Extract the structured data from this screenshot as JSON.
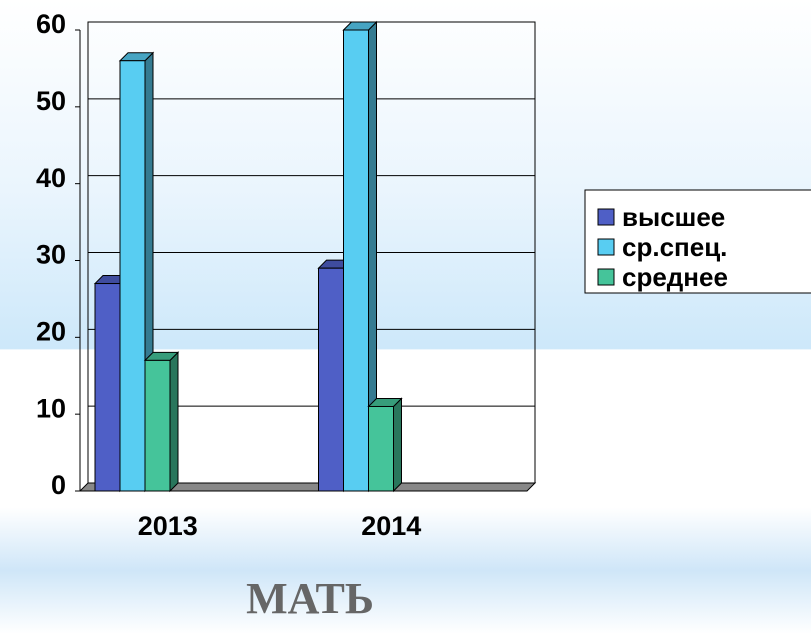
{
  "chart_data": {
    "type": "bar3d",
    "title": "МАТЬ",
    "categories": [
      "2013",
      "2014"
    ],
    "series": [
      {
        "name": "высшее",
        "color": "#4f5fc6",
        "values": [
          27,
          29
        ]
      },
      {
        "name": "ср.спец.",
        "color": "#58cdf2",
        "values": [
          56,
          60
        ]
      },
      {
        "name": "среднее",
        "color": "#45c49a",
        "values": [
          17,
          11
        ]
      }
    ],
    "ylim": [
      0,
      60
    ],
    "yticks": [
      0,
      10,
      20,
      30,
      40,
      50,
      60
    ],
    "grid": true,
    "legend": "right"
  }
}
